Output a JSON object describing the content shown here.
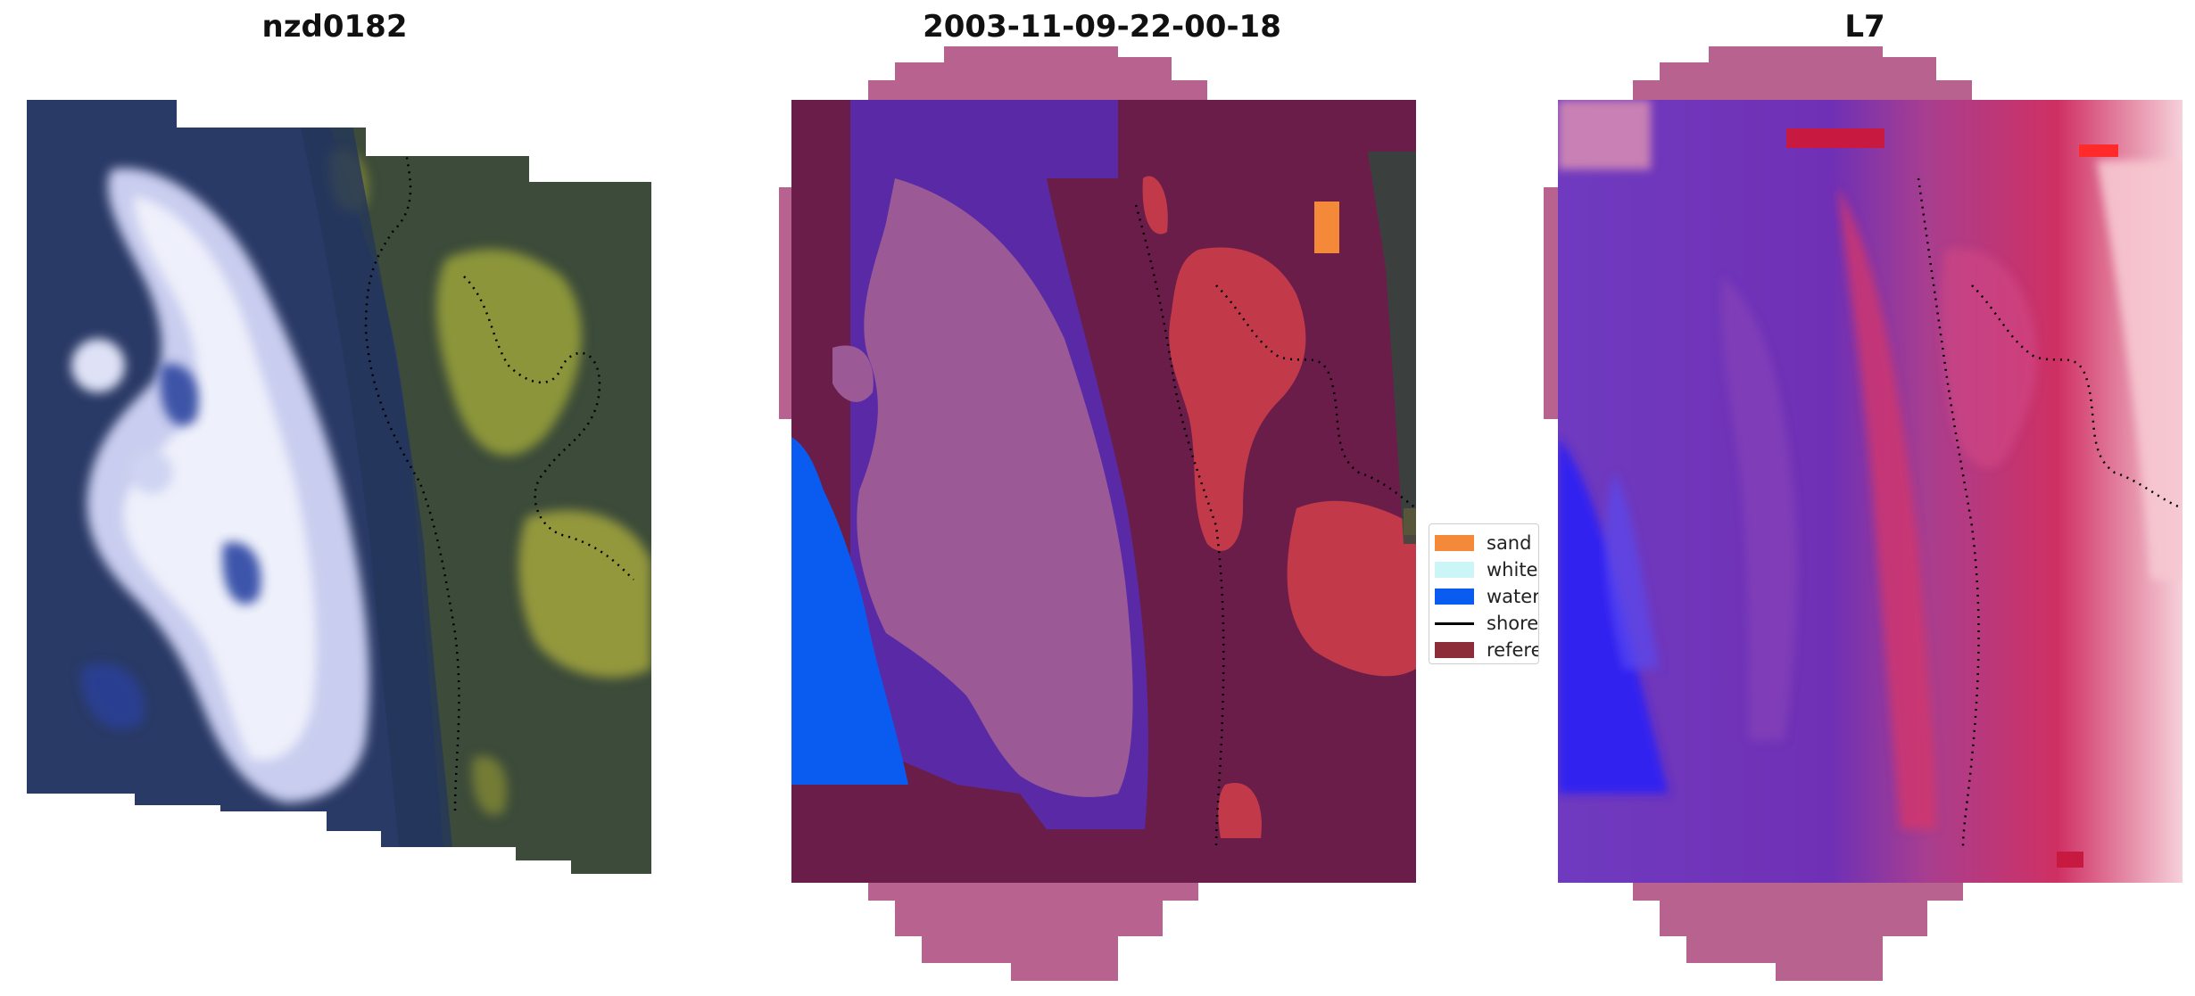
{
  "panels": [
    {
      "title": "nzd0182",
      "kind": "rgb-image"
    },
    {
      "title": "2003-11-09-22-00-18",
      "kind": "classification-overlay"
    },
    {
      "title": "L7",
      "kind": "index-image"
    }
  ],
  "legend": {
    "items": [
      {
        "label": "sand",
        "color": "#f5893a",
        "style": "patch"
      },
      {
        "label": "whitewater",
        "color": "#ccf5f8",
        "style": "patch"
      },
      {
        "label": "water",
        "color": "#0a5cf0",
        "style": "patch"
      },
      {
        "label": "shoreline",
        "color": "#000000",
        "style": "line"
      },
      {
        "label": "reference",
        "color": "#8e2d3a",
        "style": "patch"
      }
    ]
  },
  "colors": {
    "overlay_pink": "#b7628f",
    "rgb_dark_sea": "#1f2f5a",
    "rgb_surf": "#dfe3f5",
    "rgb_land": "#a9ab3a",
    "water_blue": "#0a5cf0",
    "land_red": "#c23a4a",
    "sand_orange": "#f5893a",
    "nir_purple": "#6a2cb8",
    "nir_red": "#d6275a"
  }
}
